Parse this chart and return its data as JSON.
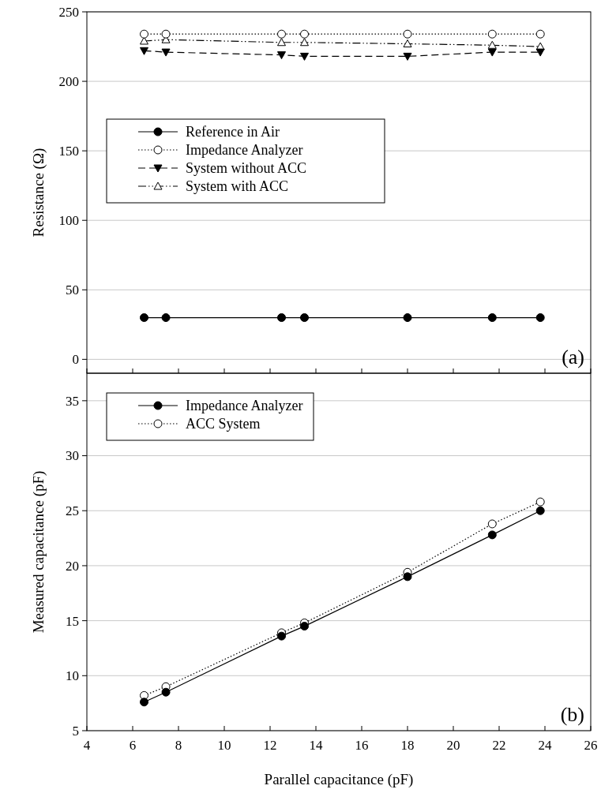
{
  "chart_data": [
    {
      "type": "line",
      "ylabel": "Resistance (Ω)",
      "x": [
        6.5,
        7.45,
        12.5,
        13.5,
        18,
        21.7,
        23.8
      ],
      "xlim": [
        4,
        26
      ],
      "xticks": [
        4,
        6,
        8,
        10,
        12,
        14,
        16,
        18,
        20,
        22,
        24,
        26
      ],
      "ylim": [
        -10,
        250
      ],
      "yticks": [
        0,
        50,
        100,
        150,
        200,
        250
      ],
      "tick_labels": "y",
      "grid": "y",
      "legend": "left",
      "annotations": [
        "(a)"
      ],
      "series": [
        {
          "name": "Reference in Air",
          "color": "#000000",
          "marker": "circle",
          "line_style": "solid",
          "values": [
            30,
            30,
            30,
            30,
            30,
            30,
            30
          ]
        },
        {
          "name": "Impedance Analyzer",
          "color": "#000000",
          "marker": "circle-open",
          "line_style": "dotted",
          "values": [
            234,
            234,
            234,
            234,
            234,
            234,
            234
          ]
        },
        {
          "name": "System without ACC",
          "color": "#000000",
          "marker": "triangle-down",
          "line_style": "dashed",
          "values": [
            222,
            221,
            219,
            218,
            218,
            221,
            221
          ]
        },
        {
          "name": "System with ACC",
          "color": "#000000",
          "marker": "triangle-open",
          "line_style": "dashdot",
          "values": [
            229,
            230,
            228,
            228,
            227,
            226,
            225
          ]
        }
      ]
    },
    {
      "type": "line",
      "xlabel": "Parallel capacitance (pF)",
      "ylabel": "Measured capacitance (pF)",
      "x": [
        6.5,
        7.45,
        12.5,
        13.5,
        18,
        21.7,
        23.8
      ],
      "xlim": [
        4,
        26
      ],
      "xticks": [
        4,
        6,
        8,
        10,
        12,
        14,
        16,
        18,
        20,
        22,
        24,
        26
      ],
      "ylim": [
        5,
        37.5
      ],
      "yticks": [
        5,
        10,
        15,
        20,
        25,
        30,
        35
      ],
      "grid": "y",
      "legend": "top left",
      "annotations": [
        "(b)"
      ],
      "series": [
        {
          "name": "Impedance Analyzer",
          "color": "#000000",
          "marker": "circle",
          "line_style": "solid",
          "values": [
            7.6,
            8.5,
            13.6,
            14.5,
            19,
            22.8,
            25
          ]
        },
        {
          "name": "ACC System",
          "color": "#000000",
          "marker": "circle-open",
          "line_style": "dotted",
          "values": [
            8.2,
            9,
            13.9,
            14.8,
            19.4,
            23.8,
            25.8
          ]
        }
      ]
    }
  ]
}
